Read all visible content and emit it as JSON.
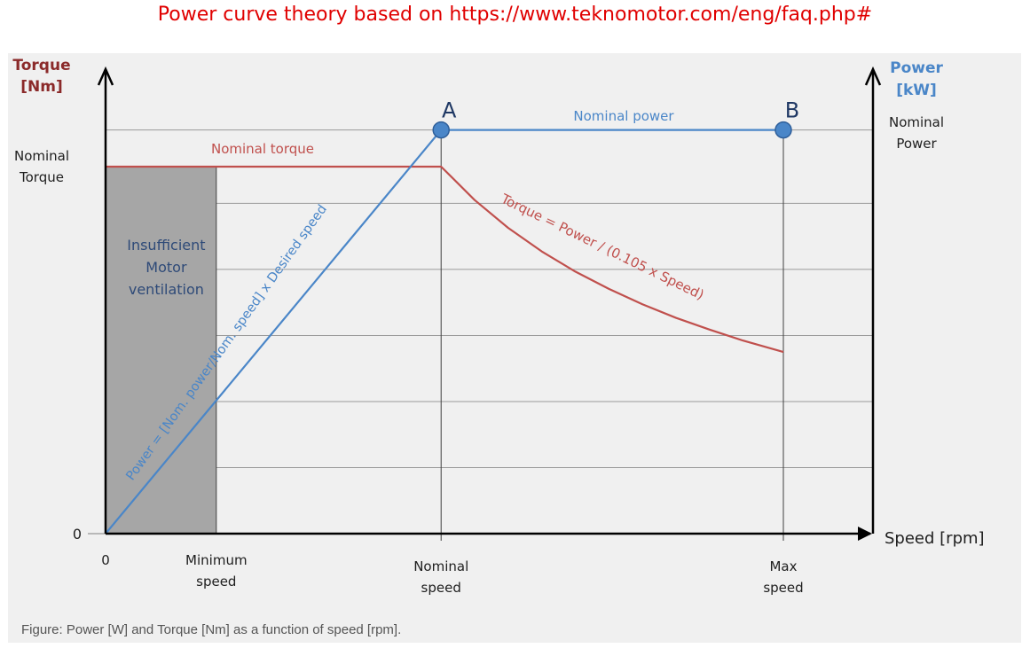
{
  "title": "Power curve theory based on https://www.teknomotor.com/eng/faq.php#",
  "caption": "Figure: Power [W] and Torque [Nm] as a function of speed [rpm].",
  "colors": {
    "title": "#e00000",
    "torque": "#c0504d",
    "power": "#4a86c8",
    "shade": "#a6a6a6",
    "axis": "#000000",
    "grid": "#9a9a9a",
    "label": "#404040",
    "point": "#4a86c8"
  },
  "chart_data": {
    "type": "line",
    "xlabel": "Speed [rpm]",
    "y_left_label": [
      "Torque",
      "[Nm]"
    ],
    "y_right_label": [
      "Power",
      "[kW]"
    ],
    "x_ticks": [
      {
        "id": "zero",
        "value": 0,
        "lines": [
          "0"
        ]
      },
      {
        "id": "minimum",
        "value": 0.33,
        "lines": [
          "Minimum",
          "speed"
        ]
      },
      {
        "id": "nominal",
        "value": 1.0,
        "lines": [
          "Nominal",
          "speed"
        ]
      },
      {
        "id": "max",
        "value": 2.02,
        "lines": [
          "Max",
          "speed"
        ]
      }
    ],
    "y_left_ticks": [
      {
        "id": "zero",
        "value": 0,
        "lines": [
          "0"
        ]
      },
      {
        "id": "nominal-torque",
        "value": 1.0,
        "lines": [
          "Nominal",
          "Torque"
        ]
      }
    ],
    "y_right_ticks": [
      {
        "id": "nominal-power",
        "value": 1.1,
        "lines": [
          "Nominal",
          "Power"
        ]
      }
    ],
    "xlim": [
      0,
      2.3
    ],
    "ylim": [
      0,
      1.3
    ],
    "grid_y": [
      0.18,
      0.36,
      0.54,
      0.72,
      0.9,
      1.1
    ],
    "series": [
      {
        "name": "Torque",
        "color": "#c0504d",
        "x": [
          0,
          1.0,
          1.1,
          1.2,
          1.3,
          1.4,
          1.5,
          1.6,
          1.7,
          1.8,
          1.9,
          2.02
        ],
        "y": [
          1.0,
          1.0,
          0.909,
          0.833,
          0.769,
          0.714,
          0.667,
          0.625,
          0.588,
          0.556,
          0.526,
          0.495
        ]
      },
      {
        "name": "Power",
        "color": "#4a86c8",
        "x": [
          0,
          1.0,
          2.02
        ],
        "y": [
          0,
          1.1,
          1.1
        ]
      }
    ],
    "points": [
      {
        "label": "A",
        "x": 1.0,
        "y": 1.1
      },
      {
        "label": "B",
        "x": 2.02,
        "y": 1.1
      }
    ],
    "shaded_region": {
      "x": [
        0,
        0.33
      ],
      "label": [
        "Insufficient",
        "Motor",
        "ventilation"
      ]
    },
    "annotations": {
      "nominal_torque": "Nominal torque",
      "nominal_power": "Nominal power",
      "torque_formula": "Torque = Power / (0.105 x Speed)",
      "power_formula": "Power = [Nom. power/Nom. speed] x Desired speed"
    }
  }
}
